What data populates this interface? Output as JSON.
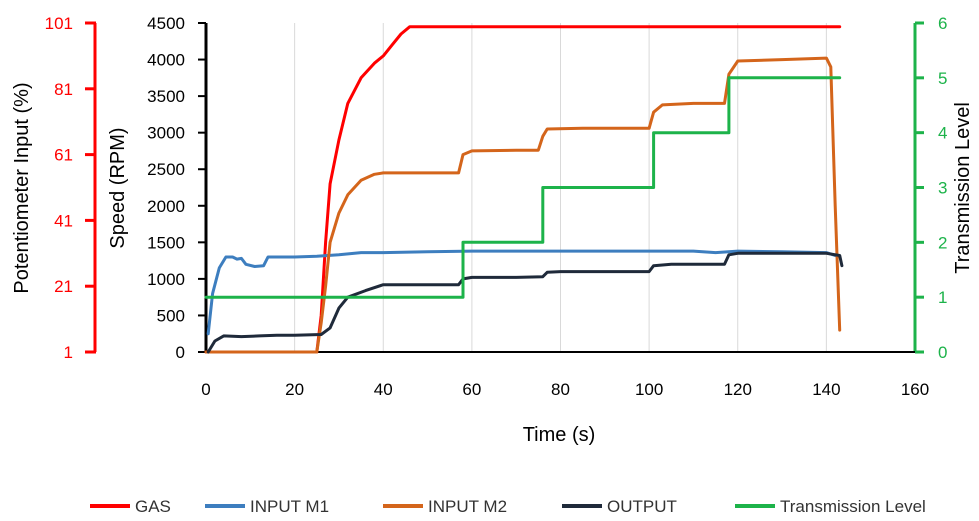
{
  "chart_data": {
    "type": "line",
    "xlabel": "Time (s)",
    "xlim": [
      0,
      160
    ],
    "x_ticks": [
      0,
      20,
      40,
      60,
      80,
      100,
      120,
      140,
      160
    ],
    "grid": "vertical",
    "legend_position": "bottom",
    "axes": {
      "potentiometer": {
        "label": "Potentiometer Input (%)",
        "ticks": [
          "1",
          "21",
          "41",
          "61",
          "81",
          "101"
        ],
        "range": [
          1,
          101
        ],
        "color": "#ff0000"
      },
      "speed": {
        "label": "Speed (RPM)",
        "ticks": [
          "0",
          "500",
          "1000",
          "1500",
          "2000",
          "2500",
          "3000",
          "3500",
          "4000",
          "4500"
        ],
        "range": [
          0,
          4500
        ],
        "color": "#000000"
      },
      "transmission": {
        "label": "Transmission Level",
        "ticks": [
          "0",
          "1",
          "2",
          "3",
          "4",
          "5",
          "6"
        ],
        "range": [
          0,
          6
        ],
        "color": "#1db34a"
      }
    },
    "series": [
      {
        "name": "GAS",
        "axis": "speed",
        "color": "#ff0000",
        "points": [
          [
            0,
            0
          ],
          [
            25,
            0
          ],
          [
            26,
            500
          ],
          [
            27,
            1500
          ],
          [
            28,
            2300
          ],
          [
            30,
            2900
          ],
          [
            32,
            3400
          ],
          [
            35,
            3750
          ],
          [
            38,
            3950
          ],
          [
            40,
            4050
          ],
          [
            42,
            4200
          ],
          [
            44,
            4350
          ],
          [
            46,
            4450
          ],
          [
            50,
            4450
          ],
          [
            60,
            4450
          ],
          [
            70,
            4450
          ],
          [
            80,
            4450
          ],
          [
            90,
            4450
          ],
          [
            100,
            4450
          ],
          [
            110,
            4450
          ],
          [
            120,
            4450
          ],
          [
            130,
            4450
          ],
          [
            140,
            4450
          ],
          [
            143,
            4450
          ]
        ]
      },
      {
        "name": "INPUT M1",
        "axis": "speed",
        "color": "#3d7ebf",
        "points": [
          [
            0.5,
            250
          ],
          [
            1.5,
            800
          ],
          [
            3,
            1150
          ],
          [
            4.5,
            1300
          ],
          [
            6,
            1300
          ],
          [
            7,
            1270
          ],
          [
            8,
            1280
          ],
          [
            9,
            1200
          ],
          [
            11,
            1170
          ],
          [
            13,
            1180
          ],
          [
            14,
            1300
          ],
          [
            16,
            1300
          ],
          [
            20,
            1300
          ],
          [
            25,
            1310
          ],
          [
            30,
            1330
          ],
          [
            35,
            1360
          ],
          [
            40,
            1360
          ],
          [
            50,
            1370
          ],
          [
            60,
            1380
          ],
          [
            70,
            1380
          ],
          [
            80,
            1380
          ],
          [
            90,
            1380
          ],
          [
            100,
            1380
          ],
          [
            105,
            1380
          ],
          [
            110,
            1380
          ],
          [
            115,
            1360
          ],
          [
            120,
            1380
          ],
          [
            130,
            1370
          ],
          [
            140,
            1360
          ],
          [
            143,
            1300
          ]
        ]
      },
      {
        "name": "INPUT M2",
        "axis": "speed",
        "color": "#d4651b",
        "points": [
          [
            0,
            0
          ],
          [
            25,
            0
          ],
          [
            26,
            400
          ],
          [
            27,
            900
          ],
          [
            28,
            1500
          ],
          [
            30,
            1900
          ],
          [
            32,
            2150
          ],
          [
            35,
            2350
          ],
          [
            38,
            2430
          ],
          [
            40,
            2450
          ],
          [
            45,
            2450
          ],
          [
            50,
            2450
          ],
          [
            57,
            2450
          ],
          [
            58,
            2700
          ],
          [
            60,
            2750
          ],
          [
            70,
            2760
          ],
          [
            75,
            2760
          ],
          [
            76,
            2950
          ],
          [
            77,
            3050
          ],
          [
            85,
            3060
          ],
          [
            95,
            3060
          ],
          [
            100,
            3060
          ],
          [
            101,
            3280
          ],
          [
            103,
            3380
          ],
          [
            110,
            3400
          ],
          [
            117,
            3400
          ],
          [
            118,
            3800
          ],
          [
            120,
            3980
          ],
          [
            130,
            4000
          ],
          [
            140,
            4020
          ],
          [
            141,
            3900
          ],
          [
            142,
            2000
          ],
          [
            143,
            300
          ]
        ]
      },
      {
        "name": "OUTPUT",
        "axis": "speed",
        "color": "#1f2a3a",
        "points": [
          [
            0.5,
            0
          ],
          [
            2,
            150
          ],
          [
            4,
            220
          ],
          [
            8,
            210
          ],
          [
            12,
            220
          ],
          [
            16,
            230
          ],
          [
            20,
            230
          ],
          [
            26,
            240
          ],
          [
            28,
            330
          ],
          [
            30,
            600
          ],
          [
            32,
            750
          ],
          [
            36,
            840
          ],
          [
            40,
            920
          ],
          [
            50,
            920
          ],
          [
            57,
            920
          ],
          [
            58,
            1000
          ],
          [
            60,
            1020
          ],
          [
            70,
            1020
          ],
          [
            76,
            1030
          ],
          [
            77,
            1090
          ],
          [
            80,
            1100
          ],
          [
            90,
            1100
          ],
          [
            100,
            1100
          ],
          [
            101,
            1180
          ],
          [
            105,
            1200
          ],
          [
            110,
            1200
          ],
          [
            117,
            1200
          ],
          [
            118,
            1330
          ],
          [
            120,
            1350
          ],
          [
            130,
            1350
          ],
          [
            140,
            1350
          ],
          [
            143,
            1320
          ],
          [
            143.5,
            1180
          ]
        ]
      },
      {
        "name": "Transmission Level",
        "axis": "transmission",
        "color": "#1db34a",
        "points": [
          [
            0,
            1
          ],
          [
            58,
            1
          ],
          [
            58,
            2
          ],
          [
            76,
            2
          ],
          [
            76,
            3
          ],
          [
            101,
            3
          ],
          [
            101,
            4
          ],
          [
            118,
            4
          ],
          [
            118,
            5
          ],
          [
            143,
            5
          ]
        ]
      }
    ]
  }
}
